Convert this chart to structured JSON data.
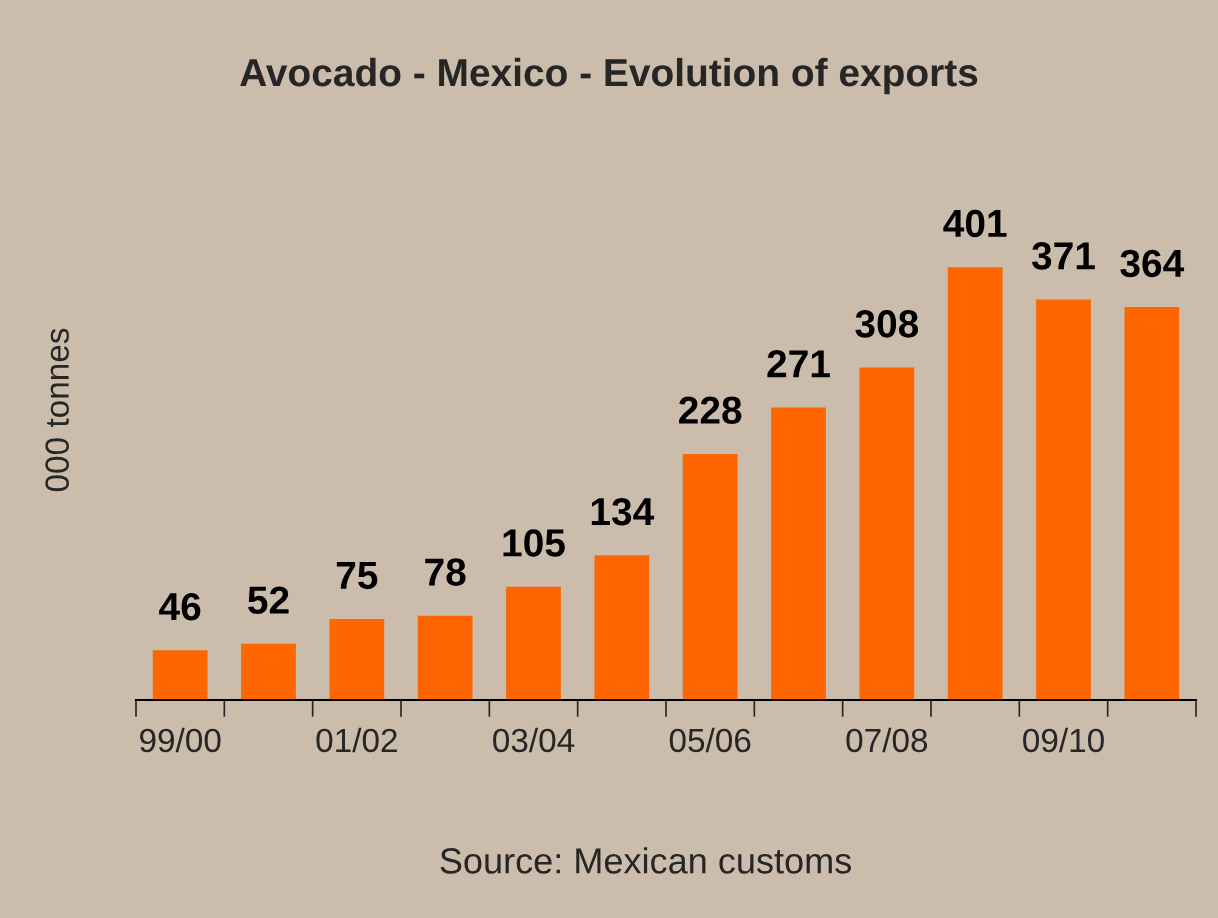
{
  "chart_data": {
    "type": "bar",
    "title": "Avocado - Mexico - Evolution of exports",
    "ylabel": "000 tonnes",
    "categories": [
      "99/00",
      null,
      "01/02",
      null,
      "03/04",
      null,
      "05/06",
      null,
      "07/08",
      null,
      "09/10",
      null
    ],
    "values": [
      46,
      52,
      75,
      78,
      105,
      134,
      228,
      271,
      308,
      401,
      371,
      364
    ],
    "color": "#ff6600",
    "data_labels": true,
    "grid": false,
    "legend": false,
    "annotations": [
      "Source: Mexican customs"
    ]
  }
}
